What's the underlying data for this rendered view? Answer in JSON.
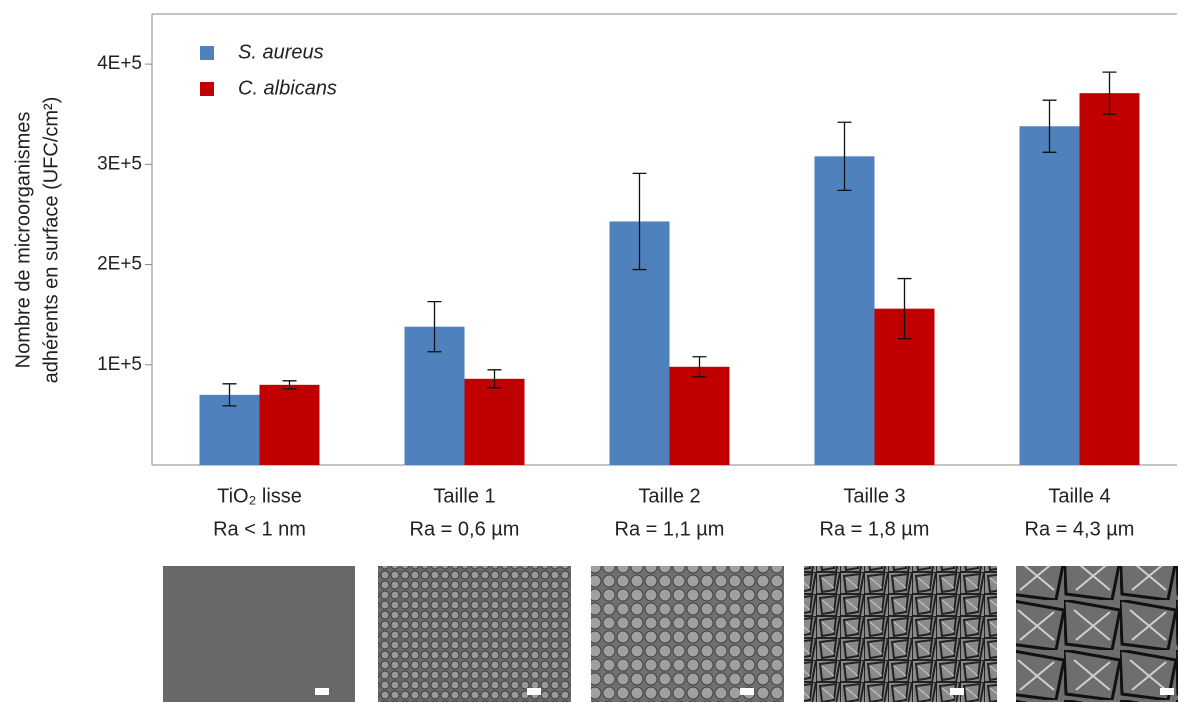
{
  "chart_data": {
    "type": "bar",
    "ylabel": [
      "Nombre de microorganismes",
      "adhérents  en surface (UFC/cm²)"
    ],
    "categories": [
      "TiO₂ lisse",
      "Taille 1",
      "Taille 2",
      "Taille 3",
      "Taille 4"
    ],
    "roughness": [
      "Ra < 1 nm",
      "Ra = 0,6 µm",
      "Ra = 1,1 µm",
      "Ra = 1,8 µm",
      "Ra = 4,3 µm"
    ],
    "series": [
      {
        "name": "S. aureus",
        "color": "#4f81bd",
        "values": [
          70000,
          138000,
          243000,
          308000,
          338000
        ],
        "errors": [
          11000,
          25000,
          48000,
          34000,
          26000
        ]
      },
      {
        "name": "C. albicans",
        "color": "#c00000",
        "values": [
          80000,
          86000,
          98000,
          156000,
          371000
        ],
        "errors": [
          4000,
          9000,
          10000,
          30000,
          21000
        ]
      }
    ],
    "ylim": [
      0,
      450000
    ],
    "yticks": [
      {
        "value": 100000,
        "label": "1E+5"
      },
      {
        "value": 200000,
        "label": "2E+5"
      },
      {
        "value": 300000,
        "label": "3E+5"
      },
      {
        "value": 400000,
        "label": "4E+5"
      }
    ],
    "legend": "upper-left"
  }
}
